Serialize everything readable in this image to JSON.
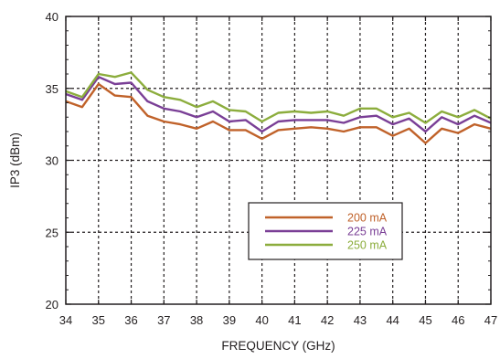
{
  "chart_data": {
    "type": "line",
    "xlabel": "FREQUENCY (GHz)",
    "ylabel": "IP3 (dBm)",
    "xlim": [
      34,
      47
    ],
    "ylim": [
      20,
      40
    ],
    "xticks": [
      "34",
      "35",
      "36",
      "37",
      "38",
      "39",
      "40",
      "41",
      "42",
      "43",
      "44",
      "45",
      "46",
      "47"
    ],
    "yticks": [
      "20",
      "25",
      "30",
      "35",
      "40"
    ],
    "grid": true,
    "legend_position": "lower-center-right",
    "x": [
      34,
      34.5,
      35,
      35.5,
      36,
      36.5,
      37,
      37.5,
      38,
      38.5,
      39,
      39.5,
      40,
      40.5,
      41,
      41.5,
      42,
      42.5,
      43,
      43.5,
      44,
      44.5,
      45,
      45.5,
      46,
      46.5,
      47
    ],
    "series": [
      {
        "name": "200 mA",
        "color": "#c0622a",
        "values": [
          34.1,
          33.7,
          35.3,
          34.5,
          34.4,
          33.1,
          32.7,
          32.5,
          32.2,
          32.7,
          32.1,
          32.1,
          31.5,
          32.1,
          32.2,
          32.3,
          32.2,
          32.0,
          32.3,
          32.3,
          31.7,
          32.2,
          31.2,
          32.2,
          31.9,
          32.5,
          32.2
        ]
      },
      {
        "name": "225 mA",
        "color": "#7a3f96",
        "values": [
          34.6,
          34.2,
          35.8,
          35.3,
          35.4,
          34.1,
          33.6,
          33.4,
          33.0,
          33.4,
          32.7,
          32.8,
          32.0,
          32.7,
          32.8,
          32.8,
          32.8,
          32.6,
          33.0,
          33.1,
          32.5,
          32.9,
          32.0,
          33.0,
          32.5,
          33.1,
          32.6
        ]
      },
      {
        "name": "250 mA",
        "color": "#8cad3d",
        "values": [
          34.8,
          34.4,
          36.0,
          35.8,
          36.1,
          34.9,
          34.4,
          34.2,
          33.7,
          34.1,
          33.5,
          33.4,
          32.7,
          33.3,
          33.4,
          33.3,
          33.4,
          33.1,
          33.6,
          33.6,
          33.0,
          33.3,
          32.6,
          33.4,
          33.0,
          33.5,
          32.9
        ]
      }
    ]
  }
}
